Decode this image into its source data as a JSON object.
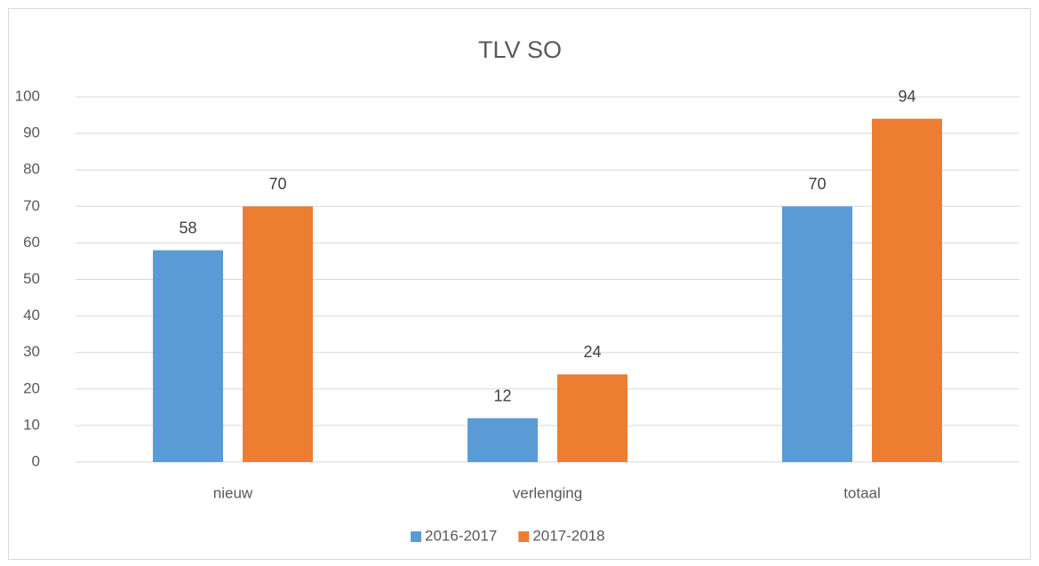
{
  "chart_data": {
    "type": "bar",
    "title": "TLV SO",
    "categories": [
      "nieuw",
      "verlenging",
      "totaal"
    ],
    "series": [
      {
        "name": "2016-2017",
        "color": "#5b9bd5",
        "values": [
          58,
          12,
          70
        ]
      },
      {
        "name": "2017-2018",
        "color": "#ed7d31",
        "values": [
          70,
          24,
          94
        ]
      }
    ],
    "ylim": [
      0,
      100
    ],
    "yticks": [
      0,
      10,
      20,
      30,
      40,
      50,
      60,
      70,
      80,
      90,
      100
    ],
    "grid": true,
    "legend": "bottom"
  }
}
